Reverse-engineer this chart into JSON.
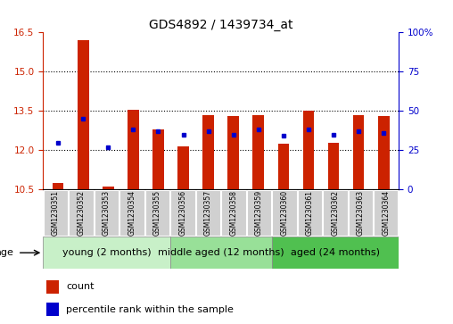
{
  "title": "GDS4892 / 1439734_at",
  "samples": [
    "GSM1230351",
    "GSM1230352",
    "GSM1230353",
    "GSM1230354",
    "GSM1230355",
    "GSM1230356",
    "GSM1230357",
    "GSM1230358",
    "GSM1230359",
    "GSM1230360",
    "GSM1230361",
    "GSM1230362",
    "GSM1230363",
    "GSM1230364"
  ],
  "count_values": [
    10.75,
    16.2,
    10.6,
    13.55,
    12.8,
    12.15,
    13.35,
    13.3,
    13.35,
    12.25,
    13.5,
    12.3,
    13.35,
    13.3
  ],
  "percentile_values": [
    30,
    45,
    27,
    38,
    37,
    35,
    37,
    35,
    38,
    34,
    38,
    35,
    37,
    36
  ],
  "y_min": 10.5,
  "y_max": 16.5,
  "y_ticks_left": [
    10.5,
    12.0,
    13.5,
    15.0,
    16.5
  ],
  "y_ticks_right": [
    0,
    25,
    50,
    75,
    100
  ],
  "bar_color": "#cc2200",
  "percentile_color": "#0000cc",
  "bg_color": "#ffffff",
  "group_data": [
    {
      "label": "young (2 months)",
      "start": 0,
      "end": 5,
      "color": "#c8f0c8"
    },
    {
      "label": "middle aged (12 months)",
      "start": 5,
      "end": 9,
      "color": "#a0e0a0"
    },
    {
      "label": "aged (24 months)",
      "start": 9,
      "end": 14,
      "color": "#50c850"
    }
  ],
  "legend_count_label": "count",
  "legend_percentile_label": "percentile rank within the sample",
  "age_label": "age",
  "title_fontsize": 10,
  "tick_fontsize": 7.5,
  "group_fontsize": 8,
  "sample_fontsize": 5.5
}
